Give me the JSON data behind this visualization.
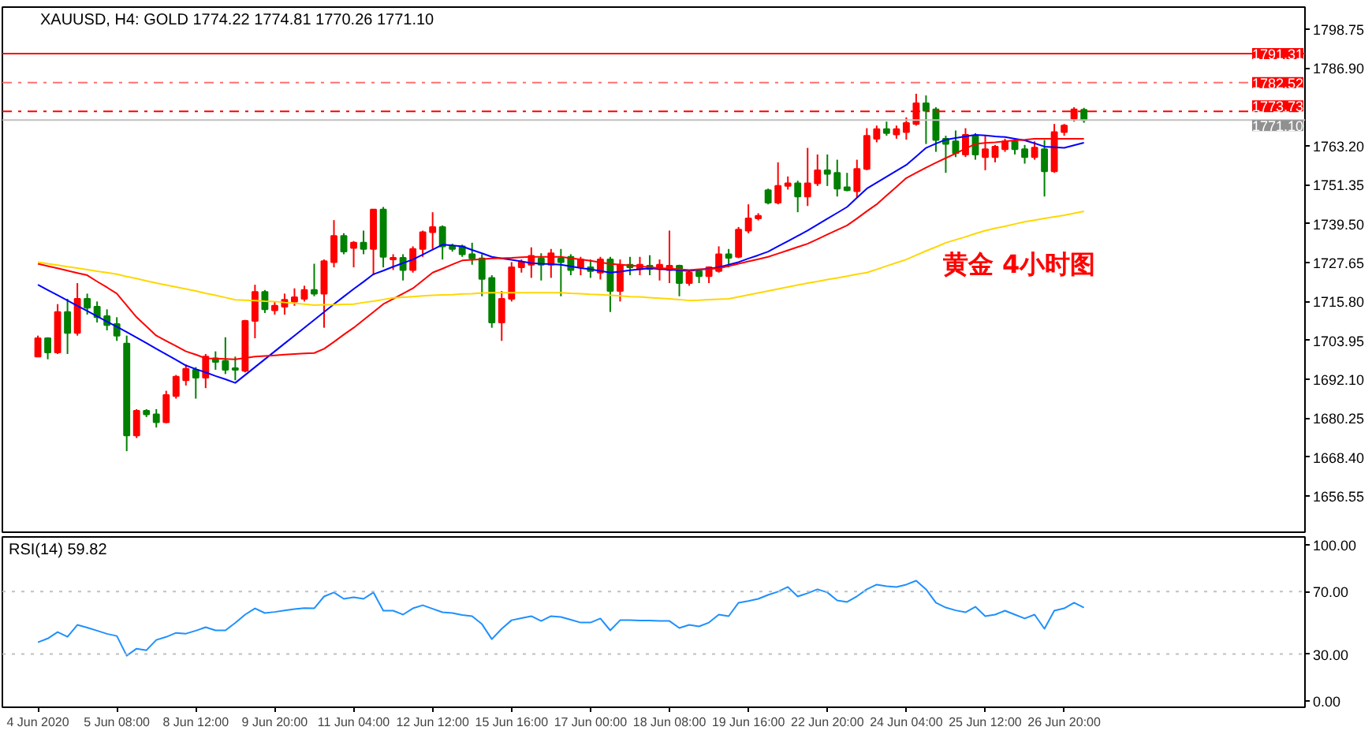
{
  "chart_data": [
    {
      "type": "candlestick",
      "title": "XAUUSD, H4:  GOLD  1774.22 1774.81 1770.26 1771.10",
      "categories": [
        null,
        null,
        null,
        null,
        null,
        null,
        null,
        null,
        null,
        null,
        null,
        null,
        null,
        null,
        null,
        null,
        null,
        null,
        null,
        null,
        null,
        null,
        null,
        null,
        null,
        null,
        null,
        null,
        null,
        null,
        null,
        null,
        null,
        null,
        null,
        null,
        null,
        null,
        null,
        null,
        null,
        null,
        null,
        null,
        null,
        null,
        null,
        null,
        null,
        null,
        null,
        null,
        null,
        null,
        null,
        null,
        null,
        null,
        null,
        null,
        null,
        null,
        null,
        null,
        null,
        null,
        null,
        null,
        null,
        null,
        null,
        null,
        null,
        null,
        null,
        null,
        null,
        null,
        null,
        null,
        null,
        null,
        null,
        null,
        null,
        null,
        null,
        null,
        null,
        null,
        null,
        null,
        null,
        null,
        null,
        null,
        null,
        null,
        null,
        null,
        null,
        null,
        null,
        null,
        null,
        null,
        null
      ],
      "ylim": [
        1645.5,
        1805.5
      ],
      "yticks": [
        {
          "value": 1798.75,
          "label": "1798.75"
        },
        {
          "value": 1786.9,
          "label": "1786.90"
        },
        {
          "value": 1763.2,
          "label": "1763.20"
        },
        {
          "value": 1751.35,
          "label": "1751.35"
        },
        {
          "value": 1739.5,
          "label": "1739.50"
        },
        {
          "value": 1727.65,
          "label": "1727.65"
        },
        {
          "value": 1715.8,
          "label": "1715.80"
        },
        {
          "value": 1703.95,
          "label": "1703.95"
        },
        {
          "value": 1692.1,
          "label": "1692.10"
        },
        {
          "value": 1680.25,
          "label": "1680.25"
        },
        {
          "value": 1668.4,
          "label": "1668.40"
        },
        {
          "value": 1656.55,
          "label": "1656.55"
        }
      ],
      "ref_lines": [
        {
          "axis": "y",
          "value": 1791.31,
          "label": "1791.31",
          "color": "#ff0000",
          "line_style": "solid"
        },
        {
          "axis": "y",
          "value": 1782.52,
          "label": "1782.52",
          "color": "#ff7070",
          "line_style": "dashdot"
        },
        {
          "axis": "y",
          "value": 1773.73,
          "label": "1773.73",
          "color": "#ff0000",
          "line_style": "dashdot"
        },
        {
          "axis": "y",
          "value": 1771.1,
          "label": "1771.10",
          "color": "#c0c0c0",
          "line_style": "solid"
        }
      ],
      "annotations": [
        "黄金  4小时图"
      ],
      "series": [
        {
          "type": "candlestick",
          "ohlc": [
            [
              1699.0,
              1705.4,
              1699.0,
              1704.6
            ],
            [
              1704.6,
              1704.9,
              1698.2,
              1700.3
            ],
            [
              1700.3,
              1715.0,
              1699.8,
              1712.6
            ],
            [
              1712.6,
              1716.6,
              1699.8,
              1706.2
            ],
            [
              1706.2,
              1721.4,
              1705.4,
              1716.6
            ],
            [
              1716.6,
              1718.2,
              1711.8,
              1713.9
            ],
            [
              1714.2,
              1715.8,
              1709.4,
              1711.0
            ],
            [
              1711.3,
              1713.4,
              1707.0,
              1708.6
            ],
            [
              1708.9,
              1711.0,
              1703.8,
              1705.4
            ],
            [
              1703.0,
              1705.4,
              1670.2,
              1675.0
            ],
            [
              1675.0,
              1683.0,
              1674.2,
              1682.5
            ],
            [
              1682.5,
              1683.0,
              1680.6,
              1681.4
            ],
            [
              1681.4,
              1683.0,
              1677.4,
              1679.0
            ],
            [
              1679.0,
              1688.6,
              1678.7,
              1687.3
            ],
            [
              1687.0,
              1693.4,
              1686.2,
              1692.9
            ],
            [
              1691.8,
              1696.6,
              1690.2,
              1695.3
            ],
            [
              1695.0,
              1695.8,
              1686.2,
              1692.6
            ],
            [
              1692.6,
              1699.8,
              1689.4,
              1699.0
            ],
            [
              1698.5,
              1700.6,
              1695.0,
              1697.4
            ],
            [
              1697.7,
              1704.9,
              1693.7,
              1695.0
            ],
            [
              1695.5,
              1699.0,
              1691.8,
              1695.0
            ],
            [
              1694.7,
              1710.2,
              1694.2,
              1709.9
            ],
            [
              1709.9,
              1720.9,
              1704.6,
              1718.7
            ],
            [
              1718.7,
              1719.3,
              1712.3,
              1713.4
            ],
            [
              1713.1,
              1715.8,
              1711.8,
              1714.5
            ],
            [
              1714.2,
              1718.2,
              1711.8,
              1716.3
            ],
            [
              1715.8,
              1719.8,
              1714.5,
              1717.1
            ],
            [
              1716.6,
              1720.6,
              1715.8,
              1719.3
            ],
            [
              1719.3,
              1727.3,
              1717.4,
              1718.2
            ],
            [
              1718.2,
              1728.6,
              1707.8,
              1728.1
            ],
            [
              1727.8,
              1740.6,
              1726.2,
              1735.8
            ],
            [
              1735.8,
              1736.6,
              1730.2,
              1731.0
            ],
            [
              1732.1,
              1734.2,
              1726.2,
              1733.7
            ],
            [
              1733.7,
              1737.4,
              1730.2,
              1731.8
            ],
            [
              1731.8,
              1743.8,
              1723.8,
              1743.8
            ],
            [
              1743.8,
              1744.6,
              1726.2,
              1729.4
            ],
            [
              1728.6,
              1730.2,
              1725.4,
              1729.1
            ],
            [
              1729.1,
              1730.2,
              1722.2,
              1725.4
            ],
            [
              1725.4,
              1732.6,
              1724.6,
              1731.8
            ],
            [
              1731.8,
              1737.4,
              1729.4,
              1736.9
            ],
            [
              1736.9,
              1743.0,
              1731.8,
              1738.5
            ],
            [
              1738.5,
              1739.0,
              1728.6,
              1732.6
            ],
            [
              1732.6,
              1733.4,
              1731.0,
              1731.8
            ],
            [
              1732.6,
              1733.1,
              1729.4,
              1730.2
            ],
            [
              1730.2,
              1733.7,
              1727.0,
              1728.9
            ],
            [
              1728.9,
              1730.2,
              1717.4,
              1722.7
            ],
            [
              1723.0,
              1723.8,
              1707.8,
              1709.4
            ],
            [
              1709.4,
              1719.0,
              1703.8,
              1716.6
            ],
            [
              1716.6,
              1727.8,
              1715.8,
              1726.2
            ],
            [
              1726.2,
              1728.6,
              1724.6,
              1727.8
            ],
            [
              1727.0,
              1732.3,
              1723.0,
              1729.7
            ],
            [
              1728.9,
              1730.5,
              1722.2,
              1727.0
            ],
            [
              1727.0,
              1731.8,
              1723.0,
              1730.5
            ],
            [
              1728.9,
              1731.8,
              1717.4,
              1727.8
            ],
            [
              1729.4,
              1730.2,
              1723.8,
              1725.4
            ],
            [
              1726.2,
              1729.4,
              1723.8,
              1728.6
            ],
            [
              1726.2,
              1728.6,
              1723.0,
              1725.1
            ],
            [
              1724.6,
              1729.4,
              1722.5,
              1728.6
            ],
            [
              1728.6,
              1729.4,
              1712.6,
              1719.0
            ],
            [
              1719.0,
              1728.6,
              1715.8,
              1727.0
            ],
            [
              1727.0,
              1729.4,
              1723.8,
              1726.2
            ],
            [
              1725.7,
              1729.4,
              1723.8,
              1727.0
            ],
            [
              1726.7,
              1729.9,
              1723.8,
              1725.7
            ],
            [
              1725.7,
              1728.6,
              1722.2,
              1727.0
            ],
            [
              1725.4,
              1737.4,
              1721.4,
              1726.7
            ],
            [
              1726.7,
              1727.0,
              1717.4,
              1721.4
            ],
            [
              1721.4,
              1725.4,
              1720.6,
              1724.6
            ],
            [
              1725.1,
              1725.4,
              1721.4,
              1723.5
            ],
            [
              1723.5,
              1726.5,
              1721.4,
              1726.2
            ],
            [
              1725.1,
              1732.6,
              1724.6,
              1730.2
            ],
            [
              1730.2,
              1731.8,
              1726.2,
              1729.1
            ],
            [
              1729.4,
              1738.5,
              1729.0,
              1737.7
            ],
            [
              1737.4,
              1745.4,
              1736.6,
              1741.1
            ],
            [
              1741.1,
              1742.7,
              1740.5,
              1741.9
            ],
            [
              1749.7,
              1750.2,
              1745.4,
              1745.9
            ],
            [
              1745.9,
              1758.2,
              1745.4,
              1751.0
            ],
            [
              1751.0,
              1753.9,
              1749.9,
              1751.8
            ],
            [
              1751.8,
              1752.6,
              1743.0,
              1747.8
            ],
            [
              1747.8,
              1762.6,
              1744.9,
              1751.8
            ],
            [
              1751.8,
              1760.6,
              1751.0,
              1755.8
            ],
            [
              1755.8,
              1760.6,
              1751.0,
              1754.7
            ],
            [
              1755.0,
              1759.0,
              1747.8,
              1750.2
            ],
            [
              1750.6,
              1755.0,
              1749.4,
              1749.7
            ],
            [
              1749.4,
              1759.0,
              1747.5,
              1756.2
            ],
            [
              1756.2,
              1768.6,
              1755.8,
              1766.3
            ],
            [
              1765.4,
              1769.4,
              1764.3,
              1768.3
            ],
            [
              1768.3,
              1770.6,
              1766.3,
              1767.1
            ],
            [
              1766.7,
              1769.4,
              1765.4,
              1768.3
            ],
            [
              1767.4,
              1771.9,
              1765.1,
              1770.2
            ],
            [
              1769.9,
              1779.1,
              1769.4,
              1776.2
            ],
            [
              1776.2,
              1778.6,
              1763.8,
              1773.9
            ],
            [
              1774.3,
              1775.0,
              1761.4,
              1765.0
            ],
            [
              1765.4,
              1766.3,
              1755.0,
              1763.8
            ],
            [
              1764.6,
              1767.9,
              1759.8,
              1761.0
            ],
            [
              1760.6,
              1768.6,
              1759.8,
              1766.6
            ],
            [
              1766.3,
              1767.1,
              1759.0,
              1760.6
            ],
            [
              1759.8,
              1766.3,
              1755.8,
              1762.2
            ],
            [
              1759.8,
              1763.5,
              1758.2,
              1763.0
            ],
            [
              1762.2,
              1765.4,
              1761.4,
              1764.6
            ],
            [
              1764.6,
              1765.4,
              1760.6,
              1762.2
            ],
            [
              1762.2,
              1763.5,
              1757.8,
              1759.8
            ],
            [
              1759.8,
              1764.6,
              1759.0,
              1762.7
            ],
            [
              1762.2,
              1765.0,
              1747.8,
              1755.5
            ],
            [
              1755.5,
              1769.9,
              1755.0,
              1767.4
            ],
            [
              1767.4,
              1769.9,
              1766.3,
              1769.4
            ],
            [
              1771.5,
              1775.0,
              1770.6,
              1774.3
            ],
            [
              1774.22,
              1774.81,
              1770.26,
              1771.1
            ]
          ],
          "colors": [
            "#ff0000",
            "#008000",
            "#ff0000",
            "#008000",
            "#ff0000",
            "#008000",
            "#008000",
            "#008000",
            "#008000",
            "#008000",
            "#ff0000",
            "#008000",
            "#008000",
            "#ff0000",
            "#ff0000",
            "#ff0000",
            "#008000",
            "#ff0000",
            "#008000",
            "#008000",
            "#008000",
            "#ff0000",
            "#ff0000",
            "#008000",
            "#ff0000",
            "#ff0000",
            "#ff0000",
            "#ff0000",
            "#008000",
            "#ff0000",
            "#ff0000",
            "#008000",
            "#ff0000",
            "#008000",
            "#ff0000",
            "#008000",
            "#ff0000",
            "#008000",
            "#ff0000",
            "#ff0000",
            "#ff0000",
            "#008000",
            "#008000",
            "#008000",
            "#008000",
            "#008000",
            "#008000",
            "#ff0000",
            "#ff0000",
            "#ff0000",
            "#ff0000",
            "#008000",
            "#ff0000",
            "#008000",
            "#008000",
            "#ff0000",
            "#008000",
            "#ff0000",
            "#008000",
            "#ff0000",
            "#008000",
            "#ff0000",
            "#008000",
            "#ff0000",
            "#ff0000",
            "#008000",
            "#ff0000",
            "#008000",
            "#ff0000",
            "#ff0000",
            "#008000",
            "#ff0000",
            "#ff0000",
            "#ff0000",
            "#008000",
            "#ff0000",
            "#ff0000",
            "#008000",
            "#ff0000",
            "#ff0000",
            "#008000",
            "#008000",
            "#008000",
            "#ff0000",
            "#ff0000",
            "#ff0000",
            "#008000",
            "#ff0000",
            "#ff0000",
            "#ff0000",
            "#008000",
            "#008000",
            "#008000",
            "#008000",
            "#ff0000",
            "#008000",
            "#ff0000",
            "#ff0000",
            "#ff0000",
            "#008000",
            "#008000",
            "#ff0000",
            "#008000",
            "#ff0000",
            "#ff0000",
            "#ff0000",
            "#008000"
          ]
        },
        {
          "type": "line",
          "color": "#0000ff",
          "values": [
            1720.9,
            1719.3,
            1717.7,
            1716.1,
            1714.5,
            1712.9,
            1711.3,
            1709.7,
            1708.1,
            1706.5,
            1704.8,
            1703.1,
            1701.4,
            1699.7,
            1698.0,
            1696.3,
            1695.2,
            1694.2,
            1693.1,
            1692.1,
            1691.0,
            1693.4,
            1695.8,
            1698.2,
            1700.6,
            1703.0,
            1705.4,
            1707.8,
            1710.2,
            1712.6,
            1715.0,
            1717.3,
            1719.6,
            1721.8,
            1724.1,
            1725.2,
            1726.4,
            1727.5,
            1728.6,
            1730.1,
            1731.6,
            1733.1,
            1732.9,
            1732.6,
            1731.5,
            1730.5,
            1729.4,
            1728.9,
            1728.5,
            1728.0,
            1727.5,
            1727.3,
            1727.2,
            1727.0,
            1726.5,
            1726.0,
            1725.6,
            1725.1,
            1724.6,
            1724.9,
            1725.3,
            1725.6,
            1725.9,
            1725.7,
            1725.5,
            1725.3,
            1725.1,
            1725.5,
            1725.8,
            1726.2,
            1727.0,
            1727.8,
            1728.9,
            1729.9,
            1731.0,
            1732.6,
            1734.2,
            1735.8,
            1737.4,
            1739.2,
            1741.0,
            1742.8,
            1744.6,
            1747.4,
            1750.2,
            1752.0,
            1753.8,
            1755.6,
            1757.4,
            1760.0,
            1762.6,
            1763.9,
            1765.1,
            1765.6,
            1766.1,
            1766.6,
            1766.4,
            1766.1,
            1765.9,
            1765.4,
            1764.9,
            1764.0,
            1763.0,
            1762.8,
            1762.6,
            1763.4,
            1764.2
          ]
        },
        {
          "type": "line",
          "color": "#ff0000",
          "values": [
            1727.3,
            1726.6,
            1725.9,
            1725.2,
            1724.5,
            1723.8,
            1721.9,
            1720.1,
            1718.2,
            1714.6,
            1711.0,
            1708.2,
            1705.4,
            1703.8,
            1702.2,
            1700.6,
            1699.6,
            1698.5,
            1698.4,
            1698.3,
            1698.2,
            1698.6,
            1699.0,
            1699.2,
            1699.4,
            1699.6,
            1699.8,
            1700.0,
            1700.1,
            1701.4,
            1703.5,
            1705.7,
            1707.8,
            1710.2,
            1712.6,
            1715.0,
            1716.6,
            1718.2,
            1719.8,
            1722.2,
            1724.6,
            1725.8,
            1727.1,
            1728.3,
            1728.5,
            1728.7,
            1728.9,
            1729.0,
            1729.1,
            1729.3,
            1729.4,
            1729.4,
            1729.4,
            1729.4,
            1729.0,
            1728.6,
            1728.2,
            1727.7,
            1727.3,
            1727.0,
            1726.8,
            1726.5,
            1726.2,
            1726.0,
            1725.8,
            1725.6,
            1725.4,
            1725.6,
            1725.7,
            1725.9,
            1726.6,
            1727.3,
            1728.0,
            1728.7,
            1729.4,
            1730.4,
            1731.4,
            1732.4,
            1733.4,
            1734.8,
            1736.2,
            1737.6,
            1739.0,
            1741.1,
            1743.3,
            1745.4,
            1748.1,
            1750.7,
            1753.4,
            1755.0,
            1756.6,
            1758.1,
            1759.5,
            1760.9,
            1762.4,
            1763.8,
            1764.1,
            1764.3,
            1764.6,
            1764.9,
            1765.1,
            1765.4,
            1765.4,
            1765.4,
            1765.4,
            1765.4,
            1765.4
          ]
        },
        {
          "type": "line",
          "color": "#ffd700",
          "values": [
            1727.8,
            1727.3,
            1726.9,
            1726.4,
            1726.0,
            1725.5,
            1725.0,
            1724.6,
            1724.1,
            1723.4,
            1722.8,
            1722.1,
            1721.4,
            1720.8,
            1720.2,
            1719.6,
            1719.0,
            1718.3,
            1717.7,
            1717.0,
            1716.3,
            1716.2,
            1716.1,
            1715.9,
            1715.8,
            1715.5,
            1715.3,
            1715.0,
            1714.7,
            1714.8,
            1714.8,
            1714.9,
            1715.0,
            1715.5,
            1715.9,
            1716.4,
            1716.9,
            1717.1,
            1717.3,
            1717.5,
            1717.7,
            1717.8,
            1717.9,
            1718.1,
            1718.2,
            1718.4,
            1718.5,
            1718.5,
            1718.5,
            1718.5,
            1718.5,
            1718.5,
            1718.5,
            1718.5,
            1718.3,
            1718.2,
            1718.0,
            1717.9,
            1717.7,
            1717.5,
            1717.3,
            1717.2,
            1717.0,
            1716.8,
            1716.6,
            1716.4,
            1716.1,
            1716.2,
            1716.4,
            1716.5,
            1716.6,
            1717.2,
            1717.8,
            1718.4,
            1719.0,
            1719.6,
            1720.2,
            1720.8,
            1721.4,
            1721.9,
            1722.5,
            1723.0,
            1723.5,
            1724.1,
            1724.6,
            1725.6,
            1726.6,
            1727.6,
            1728.6,
            1729.9,
            1731.2,
            1732.4,
            1733.7,
            1734.6,
            1735.5,
            1736.5,
            1737.4,
            1738.1,
            1738.7,
            1739.4,
            1740.1,
            1740.6,
            1741.1,
            1741.6,
            1742.1,
            1742.7,
            1743.3
          ]
        }
      ]
    },
    {
      "type": "line",
      "title": "RSI(14) 59.82",
      "categories": [
        "4 Jun 2020",
        null,
        null,
        null,
        null,
        null,
        null,
        null,
        "5 Jun 08:00",
        null,
        null,
        null,
        null,
        null,
        null,
        null,
        "8 Jun 12:00",
        null,
        null,
        null,
        null,
        null,
        null,
        null,
        "9 Jun 20:00",
        null,
        null,
        null,
        null,
        null,
        null,
        null,
        "11 Jun 04:00",
        null,
        null,
        null,
        null,
        null,
        null,
        null,
        "12 Jun 12:00",
        null,
        null,
        null,
        null,
        null,
        null,
        null,
        "15 Jun 16:00",
        null,
        null,
        null,
        null,
        null,
        null,
        null,
        "17 Jun 00:00",
        null,
        null,
        null,
        null,
        null,
        null,
        null,
        "18 Jun 08:00",
        null,
        null,
        null,
        null,
        null,
        null,
        null,
        "19 Jun 16:00",
        null,
        null,
        null,
        null,
        null,
        null,
        null,
        "22 Jun 20:00",
        null,
        null,
        null,
        null,
        null,
        null,
        null,
        "24 Jun 04:00",
        null,
        null,
        null,
        null,
        null,
        null,
        null,
        "25 Jun 12:00",
        null,
        null,
        null,
        null,
        null,
        null,
        null,
        "26 Jun 20:00",
        null,
        null
      ],
      "ylim": [
        -4,
        105
      ],
      "yticks": [
        {
          "value": 100,
          "label": "100.00"
        },
        {
          "value": 70,
          "label": "70.00"
        },
        {
          "value": 30,
          "label": "30.00"
        },
        {
          "value": 0,
          "label": "0.00"
        }
      ],
      "ref_lines": [
        {
          "axis": "y",
          "value": 70,
          "color": "#c0c0c0",
          "line_style": "dotted"
        },
        {
          "axis": "y",
          "value": 30,
          "color": "#c0c0c0",
          "line_style": "dotted"
        }
      ],
      "series": [
        {
          "color": "#1e90ff",
          "values": [
            37.6,
            40,
            44.1,
            41.1,
            48.7,
            47,
            45,
            43,
            41.6,
            29.0,
            33.5,
            32.5,
            39.1,
            41,
            43.6,
            43.1,
            45,
            47.2,
            45.2,
            45.2,
            50,
            55.3,
            59.3,
            56.3,
            57,
            58,
            58.8,
            59.5,
            59.3,
            66.9,
            69.5,
            65.4,
            66.4,
            65.4,
            69.5,
            57.8,
            57.8,
            55.3,
            59.3,
            61.3,
            59,
            56.8,
            56.3,
            55,
            54.3,
            49.2,
            39.6,
            46.2,
            51.7,
            53,
            54.3,
            51.2,
            54.3,
            53.8,
            52,
            50.2,
            50.2,
            52.8,
            45.2,
            51.7,
            51.7,
            51.5,
            51.5,
            51.3,
            51.2,
            46.7,
            48.7,
            47.7,
            50.2,
            55.3,
            54.3,
            62.9,
            64,
            65.4,
            67.9,
            70,
            73,
            66.9,
            69,
            71.5,
            69.5,
            64.4,
            63.4,
            67,
            71.5,
            74.5,
            73.5,
            73,
            74.5,
            77,
            71.5,
            62.9,
            59.8,
            58,
            56.8,
            60.3,
            54.3,
            55.3,
            57.8,
            55.3,
            52.8,
            55.3,
            46.2,
            57.8,
            59.3,
            62.9,
            59.8
          ]
        }
      ]
    }
  ]
}
